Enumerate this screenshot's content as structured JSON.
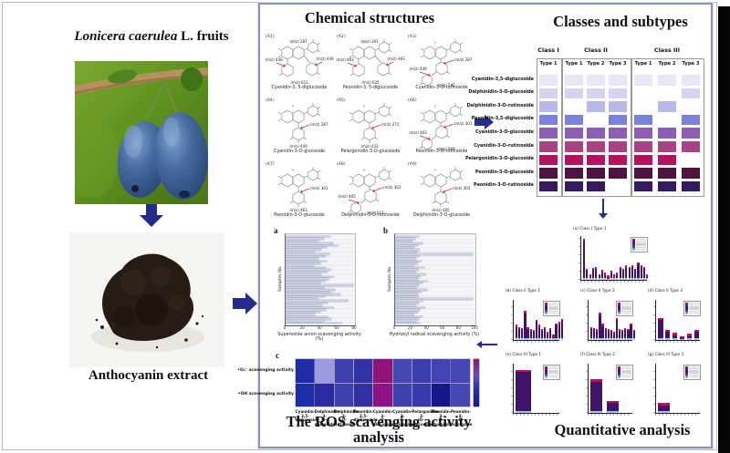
{
  "figure": {
    "accent_color": "#252c8e",
    "left": {
      "title_italic": "Lonicera caerulea",
      "title_rest": "L. fruits",
      "extract_label": "Anthocyanin extract"
    },
    "chemical": {
      "title": "Chemical structures",
      "structures": [
        {
          "id": "(A1)",
          "type": "di",
          "mz_top": "(m/z) 287",
          "mz_left": "(m/z) 449",
          "mz_right": "(m/z) 449",
          "mz_bottom": "(m/z) 611",
          "name": "Cyanidin-3, 5-diglucoside"
        },
        {
          "id": "(A2)",
          "type": "di",
          "mz_top": "(m/z) 301",
          "mz_left": "(m/z) 463",
          "mz_right": "(m/z) 463",
          "mz_bottom": "(m/z) 625",
          "name": "Peonidin-3, 5-diglucoside"
        },
        {
          "id": "(A3)",
          "type": "rut",
          "mz_top": "(m/z) 287",
          "mz_left": "(m/z) 449",
          "mz_bottom": "(m/z) 595",
          "name": "Cyanidin-3-O-rutinoside"
        },
        {
          "id": "(A4)",
          "type": "glu",
          "mz_top": "(m/z) 287",
          "mz_bottom": "(m/z) 449",
          "name": "Cyanidin-3-O-glucoside"
        },
        {
          "id": "(A5)",
          "type": "glu",
          "mz_top": "(m/z) 271",
          "mz_bottom": "(m/z) 433",
          "name": "Pelargonidin-3-O-glucoside"
        },
        {
          "id": "(A6)",
          "type": "rut",
          "mz_top": "(m/z) 301",
          "mz_left": "(m/z) 463",
          "mz_bottom": "(m/z) 609",
          "name": "Peonidin-3-O-rutinoside"
        },
        {
          "id": "(A7)",
          "type": "glu",
          "mz_top": "(m/z) 301",
          "mz_bottom": "(m/z) 463",
          "name": "Peonidin-3-O-glucoside"
        },
        {
          "id": "(A8)",
          "type": "rut",
          "mz_top": "(m/z) 303",
          "mz_left": "(m/z) 465",
          "mz_bottom": "(m/z) 611",
          "name": "Delphinidin-3-O-rutinoside"
        },
        {
          "id": "(A9)",
          "type": "glu",
          "mz_top": "(m/z) 303",
          "mz_bottom": "(m/z) 465",
          "name": "Delphinidin-3-O-glucoside"
        }
      ]
    },
    "classes": {
      "title": "Classes and subtypes",
      "groups": [
        {
          "label": "Class I",
          "types": [
            "Type 1"
          ]
        },
        {
          "label": "Class II",
          "types": [
            "Type 1",
            "Type 2",
            "Type 3"
          ]
        },
        {
          "label": "Class III",
          "types": [
            "Type 1",
            "Type 2",
            "Type 3"
          ]
        }
      ],
      "rows": [
        {
          "label": "Cyanidin-3,5-diglucoside",
          "color": "#e7e7f6",
          "presence": [
            1,
            1,
            1,
            1,
            1,
            1,
            1
          ]
        },
        {
          "label": "Delphinidin-3-O-glucoside",
          "color": "#d3d4f0",
          "presence": [
            1,
            1,
            1,
            1,
            0,
            0,
            1
          ]
        },
        {
          "label": "Delphinidin-3-O-rutinoside",
          "color": "#b7bae9",
          "presence": [
            1,
            0,
            1,
            1,
            0,
            1,
            0
          ]
        },
        {
          "label": "Peonidin-3,5-diglucoside",
          "color": "#7a82dc",
          "presence": [
            1,
            1,
            0,
            1,
            1,
            0,
            1
          ]
        },
        {
          "label": "Cyanidin-3-O-glucoside",
          "color": "#8c5eb4",
          "presence": [
            1,
            1,
            1,
            1,
            1,
            1,
            1
          ]
        },
        {
          "label": "Cyanidin-3-O-rutinoside",
          "color": "#a84386",
          "presence": [
            1,
            1,
            1,
            1,
            1,
            1,
            1
          ]
        },
        {
          "label": "Pelargonidin-3-O-glucoside",
          "color": "#b5135f",
          "presence": [
            1,
            1,
            1,
            1,
            1,
            1,
            0
          ]
        },
        {
          "label": "Peonidin-3-O-glucoside",
          "color": "#4e1340",
          "presence": [
            1,
            1,
            1,
            1,
            1,
            1,
            1
          ]
        },
        {
          "label": "Peonidin-3-O-rutinoside",
          "color": "#351a5f",
          "presence": [
            1,
            1,
            1,
            0,
            1,
            1,
            1
          ]
        }
      ]
    },
    "ros": {
      "title": "The ROS scavenging activity analysis",
      "panel_a": {
        "label": "a",
        "ylabel": "Samples No.",
        "xlabel": "Superoxide anion scavenging activity (%)",
        "xmax": 80,
        "ticks": [
          0,
          20,
          40,
          60,
          80
        ],
        "values": [
          52,
          44,
          38,
          55,
          61,
          47,
          41,
          34,
          50,
          45,
          38,
          47,
          40,
          33,
          46,
          52,
          48,
          41,
          56,
          50,
          46,
          40,
          78,
          44,
          57,
          52,
          63,
          45,
          38,
          72,
          48,
          42,
          56,
          46,
          40,
          34,
          48,
          53,
          44,
          65
        ]
      },
      "panel_b": {
        "label": "b",
        "ylabel": "Samples No.",
        "xlabel": "Hydroxyl radical scavenging activity (%)",
        "xmax": 100,
        "ticks": [
          0,
          20,
          40,
          60,
          80,
          100
        ],
        "values": [
          30,
          25,
          22,
          34,
          28,
          24,
          31,
          27,
          97,
          30,
          26,
          33,
          28,
          24,
          36,
          30,
          26,
          38,
          32,
          28,
          41,
          34,
          30,
          26,
          40,
          33,
          28,
          30,
          97,
          34,
          30,
          26,
          38,
          31,
          28,
          24,
          34,
          30,
          26,
          31
        ]
      },
      "panel_c": {
        "label": "c",
        "row_labels": [
          "•O₂⁻ scavenging activity",
          "•OH scavenging activity"
        ],
        "columns": [
          [
            "Cyanidin-3,5-",
            "diglucoside"
          ],
          [
            "Delphinidin-3-",
            "O-glucoside"
          ],
          [
            "Delphinidin-3-",
            "O-rutinoside"
          ],
          [
            "Peonidin-3,5-",
            "diglucoside"
          ],
          [
            "Cyanidin-3-",
            "O-glucoside"
          ],
          [
            "Cyanidin-3-",
            "O-rutinoside"
          ],
          [
            "Pelargonidin-3-",
            "O-glucoside"
          ],
          [
            "Peonidin-3-",
            "O-glucoside"
          ],
          [
            "Peonidin-3-",
            "O-rutinoside"
          ]
        ],
        "cell_colors": [
          [
            "#1d2da4",
            "#9b9be0",
            "#3f3fb0",
            "#3232a6",
            "#8f1378",
            "#4646b4",
            "#3c3cae",
            "#4343b2",
            "#4646b4"
          ],
          [
            "#1d2da4",
            "#2a2aa2",
            "#3f3fb0",
            "#3030a0",
            "#8f1382",
            "#3f3fb0",
            "#3a3aae",
            "#16168c",
            "#4646b4"
          ]
        ]
      }
    },
    "quant": {
      "title": "Quantitative analysis",
      "legend_colors": [
        "#c40a55",
        "#8f1570",
        "#58187c",
        "#3f1368",
        "#31307e",
        "#2f4fa0",
        "#7b9bd8",
        "#b8cdf0"
      ],
      "bar_colors": {
        "base": "#aac4ec",
        "main": "#3f1368",
        "cap": "#c40a55"
      },
      "charts": [
        {
          "id": "a",
          "label": "(a)",
          "title": "Class I Type 1",
          "values": [
            93,
            25,
            12,
            28,
            30,
            13,
            22,
            16,
            10,
            20,
            12,
            16,
            30,
            26,
            34,
            30,
            34,
            26,
            40,
            34,
            30,
            12
          ]
        },
        {
          "id": "b",
          "label": "(b)",
          "title": "Class II Type 1",
          "values": [
            38,
            33,
            30,
            72,
            33,
            28,
            25,
            50,
            38,
            28,
            33,
            20,
            30,
            13,
            42,
            45,
            52
          ]
        },
        {
          "id": "c",
          "label": "(c)",
          "title": "Class II Type 2",
          "values": [
            33,
            30,
            28,
            68,
            40,
            30,
            28,
            25,
            20,
            55,
            28,
            25,
            30,
            28,
            42,
            25
          ]
        },
        {
          "id": "d",
          "label": "(d)",
          "title": "Class II Type 3",
          "values": [
            55,
            25,
            18,
            10,
            15,
            25
          ]
        },
        {
          "id": "e",
          "label": "(e)",
          "title": "Class III Type 1",
          "values": [
            88
          ]
        },
        {
          "id": "f",
          "label": "(f)",
          "title": "Class III Type 2",
          "values": [
            68,
            24
          ]
        },
        {
          "id": "g",
          "label": "(g)",
          "title": "Class III Type 3",
          "values": [
            20
          ]
        }
      ]
    }
  }
}
